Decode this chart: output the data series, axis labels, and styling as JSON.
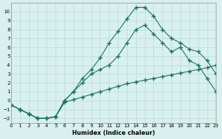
{
  "xlabel": "Humidex (Indice chaleur)",
  "ylabel": "",
  "bg_color": "#d8f0ee",
  "grid_color": "#b8d8d4",
  "line_color": "#1a6b5a",
  "xlim": [
    0,
    23
  ],
  "ylim": [
    -2.5,
    11
  ],
  "yticks": [
    -2,
    -1,
    0,
    1,
    2,
    3,
    4,
    5,
    6,
    7,
    8,
    9,
    10
  ],
  "xticks": [
    0,
    1,
    2,
    3,
    4,
    5,
    6,
    7,
    8,
    9,
    10,
    11,
    12,
    13,
    14,
    15,
    16,
    17,
    18,
    19,
    20,
    21,
    22,
    23
  ],
  "series1_x": [
    0,
    1,
    2,
    3,
    4,
    5,
    6,
    7,
    8,
    9,
    10,
    11,
    12,
    13,
    14,
    15,
    16,
    17,
    18,
    19,
    20,
    21,
    22,
    23
  ],
  "series1_y": [
    -0.5,
    -1.0,
    -1.5,
    -2.0,
    -2.0,
    -1.8,
    -0.2,
    0.1,
    0.4,
    0.7,
    1.0,
    1.3,
    1.6,
    1.9,
    2.1,
    2.3,
    2.5,
    2.7,
    2.9,
    3.1,
    3.3,
    3.5,
    3.7,
    4.0
  ],
  "series2_x": [
    0,
    1,
    2,
    3,
    4,
    5,
    6,
    7,
    8,
    9,
    10,
    11,
    12,
    13,
    14,
    15,
    16,
    17,
    18,
    19,
    20,
    21,
    22,
    23
  ],
  "series2_y": [
    -0.5,
    -1.0,
    -1.5,
    -2.0,
    -2.0,
    -1.8,
    0.0,
    1.0,
    2.0,
    3.0,
    3.5,
    4.0,
    5.0,
    6.5,
    8.0,
    8.5,
    7.5,
    6.5,
    5.5,
    6.0,
    4.5,
    4.0,
    2.5,
    1.0
  ],
  "series3_x": [
    0,
    1,
    2,
    3,
    4,
    5,
    6,
    7,
    8,
    9,
    10,
    11,
    12,
    13,
    14,
    15,
    16,
    17,
    18,
    19,
    20,
    21,
    22,
    23
  ],
  "series3_y": [
    -0.5,
    -1.0,
    -1.5,
    -2.0,
    -2.0,
    -1.8,
    0.0,
    1.0,
    2.5,
    3.5,
    4.8,
    6.5,
    7.8,
    9.2,
    10.5,
    10.5,
    9.5,
    8.0,
    7.0,
    6.5,
    5.8,
    5.5,
    4.5,
    3.0
  ]
}
